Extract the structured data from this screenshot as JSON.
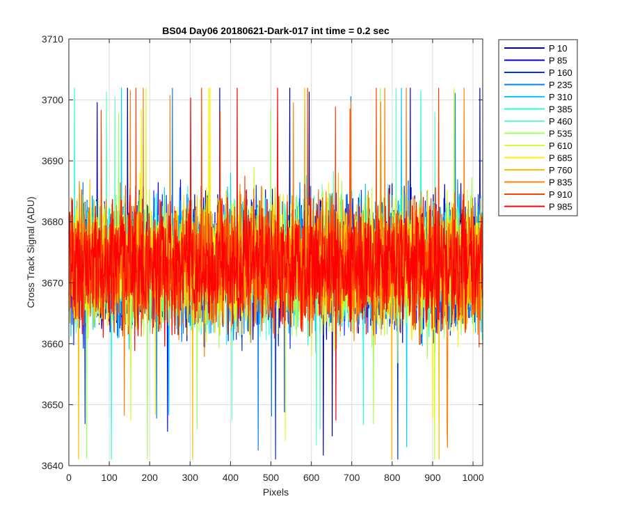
{
  "chart_data": {
    "type": "line",
    "title": "BS04 Day06 20180621-Dark-017 int time = 0.2 sec",
    "xlabel": "Pixels",
    "ylabel": "Cross Track Signal (ADU)",
    "xlim": [
      0,
      1024
    ],
    "ylim": [
      3640,
      3710
    ],
    "xticks": [
      0,
      100,
      200,
      300,
      400,
      500,
      600,
      700,
      800,
      900,
      1000
    ],
    "yticks": [
      3640,
      3650,
      3660,
      3670,
      3680,
      3690,
      3700,
      3710
    ],
    "grid": true,
    "legend_location": "outside-right",
    "noise": {
      "points_per_series": 1024,
      "mean": 3673,
      "typical_range": [
        3658,
        3690
      ],
      "observed_min": 3641,
      "observed_max": 3702
    },
    "series": [
      {
        "name": "P 10",
        "color": "#00008f"
      },
      {
        "name": "P 85",
        "color": "#0000df"
      },
      {
        "name": "P 160",
        "color": "#0030ff"
      },
      {
        "name": "P 235",
        "color": "#0080ff"
      },
      {
        "name": "P 310",
        "color": "#00cfff"
      },
      {
        "name": "P 385",
        "color": "#20ffdf"
      },
      {
        "name": "P 460",
        "color": "#60ffbf"
      },
      {
        "name": "P 535",
        "color": "#9fff60"
      },
      {
        "name": "P 610",
        "color": "#cfff30"
      },
      {
        "name": "P 685",
        "color": "#ffef00"
      },
      {
        "name": "P 760",
        "color": "#ffbf00"
      },
      {
        "name": "P 835",
        "color": "#ff8000"
      },
      {
        "name": "P 910",
        "color": "#ff4000"
      },
      {
        "name": "P 985",
        "color": "#ff0000"
      }
    ]
  }
}
